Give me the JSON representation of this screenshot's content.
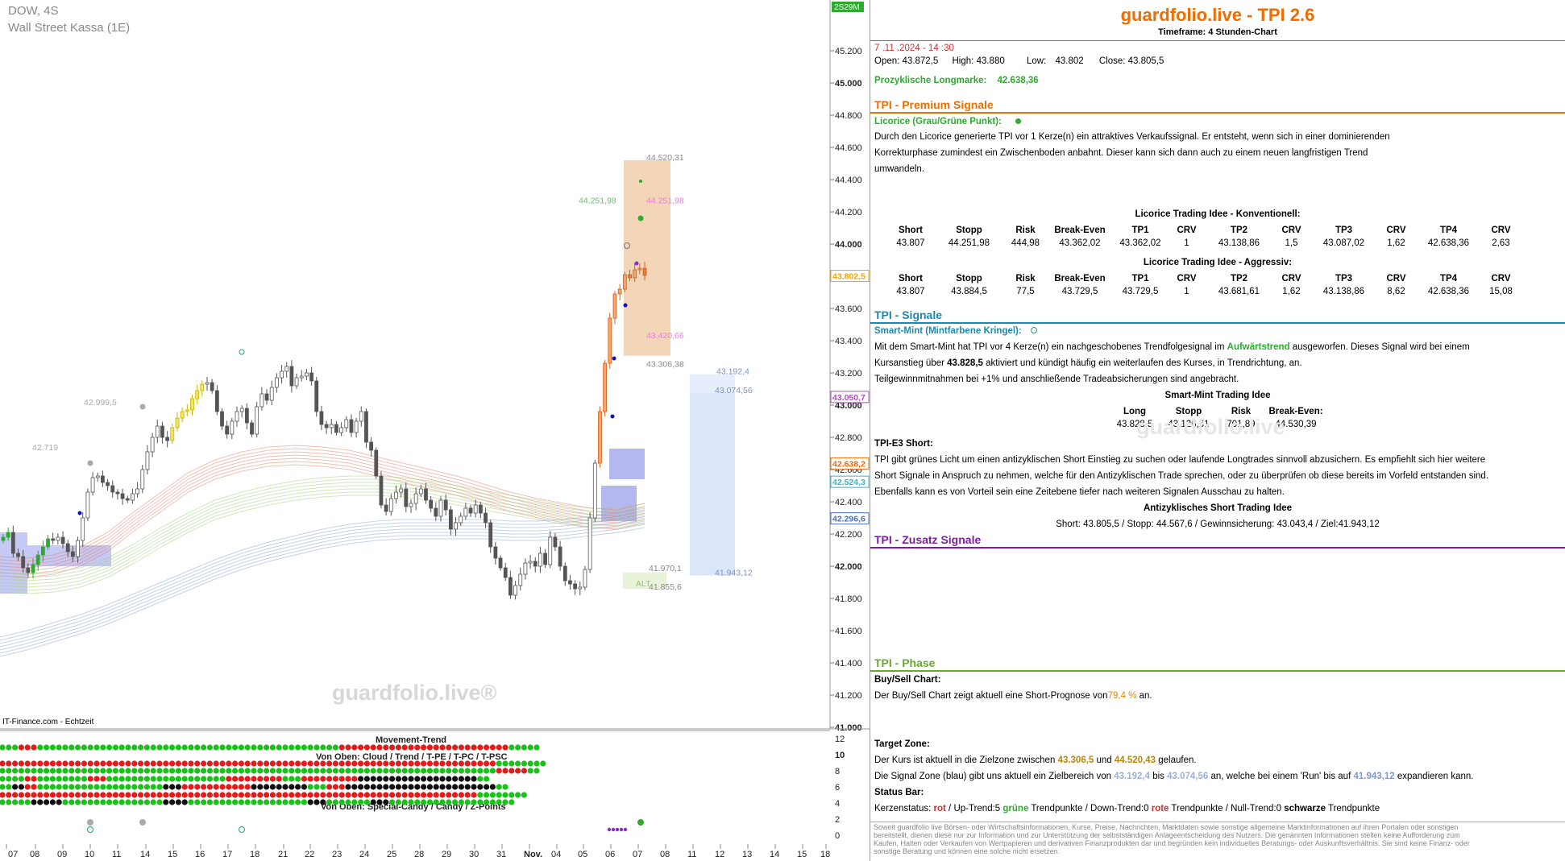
{
  "chart_header": {
    "symbol": "DOW, 4S",
    "subtitle": "Wall Street Kassa (1E)",
    "source": "IT-Finance.com - Echtzeit",
    "watermark": "guardfolio.live®",
    "corner_badge": "2S29M"
  },
  "chart_data": [
    {
      "type": "candlestick",
      "title": "DOW, 4S",
      "subtitle": "Wall Street Kassa (1E)",
      "ylim": [
        41000,
        45300
      ],
      "y_ticks": [
        "45.200",
        "45.000",
        "44.800",
        "44.600",
        "44.400",
        "44.200",
        "44.000",
        "43.800",
        "43.600",
        "43.400",
        "43.200",
        "43.000",
        "42.800",
        "42.600",
        "42.400",
        "42.200",
        "42.000",
        "41.800",
        "41.600",
        "41.400",
        "41.200",
        "41.000"
      ],
      "x_ticks": [
        "07",
        "08",
        "09",
        "10",
        "11",
        "14",
        "15",
        "16",
        "17",
        "18",
        "21",
        "22",
        "23",
        "24",
        "25",
        "28",
        "29",
        "30",
        "31",
        "Nov.",
        "04",
        "05",
        "06",
        "07",
        "08",
        "11",
        "12",
        "13",
        "14",
        "15",
        "18"
      ],
      "price_flags": [
        {
          "label": "43.802,5",
          "value": 43802.5,
          "color": "#f6a400"
        },
        {
          "label": "43.050,7",
          "value": 43050.7,
          "color": "#b04cc7"
        },
        {
          "label": "42.638,2",
          "value": 42638.2,
          "color": "#ef6c00"
        },
        {
          "label": "42.524,3",
          "value": 42524.3,
          "color": "#39b5c9"
        },
        {
          "label": "42.296,6",
          "value": 42296.6,
          "color": "#4a6fc0"
        }
      ],
      "annotations": [
        {
          "text": "44.520,31",
          "value": 44520.31
        },
        {
          "text": "44.251,98",
          "value": 44251.98
        },
        {
          "text": "44.251,98",
          "value": 44251.98
        },
        {
          "text": "43.420,66",
          "value": 43420.66
        },
        {
          "text": "43.306,38",
          "value": 43306.38
        },
        {
          "text": "43.192,4",
          "value": 43192.4
        },
        {
          "text": "43.074,56",
          "value": 43074.56
        },
        {
          "text": "42.999,5",
          "value": 42999.5
        },
        {
          "text": "42.719",
          "value": 42719
        },
        {
          "text": "41.970,1",
          "value": 41970.1
        },
        {
          "text": "41.855,6",
          "value": 41855.6
        },
        {
          "text": "41.943,12",
          "value": 41943.12
        },
        {
          "text": "ALT",
          "value": 41900
        }
      ],
      "candles_close": [
        42180,
        42210,
        42080,
        42060,
        41990,
        41960,
        42010,
        42070,
        42120,
        42170,
        42160,
        42180,
        42140,
        42090,
        42060,
        42160,
        42300,
        42460,
        42550,
        42560,
        42520,
        42500,
        42460,
        42450,
        42420,
        42410,
        42450,
        42480,
        42600,
        42710,
        42800,
        42870,
        42800,
        42780,
        42860,
        42920,
        42960,
        42970,
        43040,
        43090,
        43130,
        43140,
        43090,
        42960,
        42870,
        42820,
        42900,
        42960,
        42980,
        42890,
        42820,
        42990,
        43070,
        43030,
        43110,
        43170,
        43210,
        43240,
        43120,
        43170,
        43180,
        43200,
        43150,
        42960,
        42880,
        42860,
        42880,
        42830,
        42860,
        42910,
        42830,
        42900,
        42960,
        42770,
        42720,
        42560,
        42380,
        42340,
        42420,
        42460,
        42480,
        42370,
        42390,
        42450,
        42480,
        42410,
        42360,
        42310,
        42410,
        42350,
        42230,
        42270,
        42310,
        42360,
        42330,
        42380,
        42330,
        42270,
        42120,
        42050,
        41990,
        41930,
        41820,
        41880,
        41950,
        42020,
        42030,
        42000,
        42080,
        42010,
        42180,
        42120,
        42000,
        41910,
        41890,
        41860,
        41870,
        41980,
        42300,
        42640,
        42960,
        43260,
        43540,
        43690,
        43720,
        43810,
        43790,
        43840,
        43850,
        43805
      ],
      "ribbon": [
        {
          "name": "",
          "color": "#e8806a",
          "values": [
            42000,
            41990,
            42010,
            42060,
            42150,
            42280,
            42400,
            42520,
            42600,
            42650,
            42680,
            42690,
            42680,
            42660,
            42620,
            42580,
            42540,
            42500,
            42450,
            42400,
            42360,
            42330,
            42300,
            42290,
            42330
          ]
        },
        {
          "name": "",
          "color": "#9ed07a",
          "values": [
            41900,
            41890,
            41900,
            41930,
            41990,
            42080,
            42180,
            42270,
            42350,
            42400,
            42440,
            42470,
            42490,
            42500,
            42500,
            42490,
            42470,
            42440,
            42410,
            42380,
            42350,
            42320,
            42300,
            42300,
            42330
          ]
        },
        {
          "name": "",
          "color": "#8aa6d6",
          "values": [
            41500,
            41540,
            41590,
            41640,
            41700,
            41770,
            41840,
            41910,
            41980,
            42040,
            42090,
            42130,
            42170,
            42200,
            42220,
            42230,
            42230,
            42230,
            42230,
            42220,
            42220,
            42230,
            42250,
            42270,
            42300
          ]
        }
      ]
    },
    {
      "type": "heatmap",
      "title": "Movement-Trend",
      "row_labels": [
        "Von Oben: Cloud / Trend / T-PE / T-PC / T-PSC",
        "Von Oben: Special-Candy / Candy / Z-Points"
      ],
      "y_ticks": [
        "12",
        "10",
        "8",
        "6",
        "4",
        "2",
        "0"
      ],
      "rows": [
        "GGGGGGGGGRRRRRRRRRGGGGGGGGGGGGGGGGGGGGGGGGGGGGGGGGGGGGGGGGGGGGGGGGGGGGGGGGGGGGGGGGGGGGGGGGGGGGGGGGGGGGGGGGGGGGGGGGGGGGGGGGGGGGGGGGGGGGGGGGGGGGGGGGGGGGGGGGGGGGGGGRRRRRRRRRRRRRRRRRRRRRRRRRRRRRRRRRRRRRRRRRRRRRRRRRRRRRRRRRRRRRRRRRRRRRRRRRRRRRRRRRRGGGGGGGGGGGGGGG",
        "RRRRRRRRRRRRRRRRRRRRRRRRRRRRRRRRRRRRRRRRRRRRRRRRRRRRRRRRRRRRRRRRRRRRRRRRRRRRRRRRRRRRRRRRRRRRRRRRRRRRRRRRRRRRRRRRRRRRRRRRRRRRRRRRRRRRRRRRRRRRRRRRRRRRRRRRRRRRRRRRRRRRRRRRRRRRRRRRRRRRRRRRRRRRRRRRRRRRRRRRRRRRRRRRRRRRRRRRRRRRRRRRRRRRRRRRRRRRGGGGGGGGGGGGGGGGGGGGGGGGG",
        "GGGGGGGGGGGGGGGGGGGGGGGGGGGGGGGGGGGGGGGGGGGGGGGGGGGGGGGGGGGGGGGGGGGGGGGGGGGGGGGGGGGGGGGGGGGGGGGGGGGGGGGGGGGGGGGGGGGGGGGGGGGGGGGGGGGGGGGGGGGGGGGGGGGGGGGGGGGGGGGGGGGGGGGGGGGGGGGGGGGGGGGGGGGGGGGGGGGGGGGGGGGGGGGGGGGGGGGGGGGGGGGGGGGGGGGGGGGGRRRRRRRRRRRRRRGGGGGGGG",
        "GGGGGGGGGGGGRRRRRGGGGGGGGGGGGGGGGGGGGGGGGRRRRRRRRGGGGGGGGGGGGGGGGGGGGGGGGGGGGGGGGGGGGGGGGGGGGGGGGGGGGGGGGGGGRRRRRRRRRRRRRRRRRRRRRRRRRRGGGGGGGGGGRRRRRRRRRRRRRRRRRRRRRRRRRRRBBBBBBBBBBBBBBBBBBBBBBBBBBBBBBBBBBBBBBBBBBBBBBBBBBBBBBBGGGGGGGG",
        "GGGGGBBBBBBBRRRRRRGGGGGGGGGGGGGGGGGGGGGGGGGGGGGGGGGGGGGGGGGGGGGGGGGGGGGGGGGGGBBBBBBBBBRRRRRRRRRRRRRRRRRRRRRRRRRRRRRRRRRRBBBBBBBBBBBBBBBBBBBBBBBBBBGGGGGGGGGGRRRRRRRRBBBBBBBBBBBBBBBBBBBBBBBBBBBBBBBBBBBBBBBBBBBBBBBBBBBBBBBBBBBBBBBBBBBBBBBGGGGGGGG",
        "RRRRRRRRRRRRRRRRRRRRRRRRRRRRRRRRRRRRRRRRRRRRRRRRRRRRRRRRRRRRRRRRRRRRRRRRRRRRRRRRRRRRRRRRRRRRRRRRRRRRRRRRRRRRRRRRRRRRRRRRRRRRRRRRRRRRRRRRRRRRRRRRRRRRRRRRRRRRRRRRRRRRRRRRRRRRRRRRRRRRRRRRRRRRRRRRRRRRRRRRRRRRRRRRRRRRRRRRRRRRRRRRRRRGGGGGGGGGGGGGGGGGGGGGGGG",
        "GGGGGGGGGGGGGBBBBBBBBBBBBBBBGGGGGGGGGGGGGGGGGGGGGGGGGGGGGGGGGGGGGGGGGGGGGGGGGGBBBBBBBBBBBGGGGGGGGGGGGGGGGGGGGGGGGGGGGGGGGGGGGGGGGGGGGGGGGGGGGGGGGBBBBBBBBBGGGGGGGGGGGGGGGGGGGGGBBBBBBBBBBGGGGGGGGGGGGGGGGGGGGGGGGGGGGGGGGGGGGGGGGGGGGGGGGGGGGGGGGGGGGG"
      ]
    }
  ],
  "info": {
    "title": "guardfolio.live - TPI 2.6",
    "timeframe": "Timeframe: 4 Stunden-Chart",
    "date": "7 .11 .2024  - 14 :30",
    "ohlc": {
      "open_label": "Open:",
      "open": "43.872,5",
      "high_label": "High:",
      "high": "43.880",
      "low_label": "Low:",
      "low": "43.802",
      "close_label": "Close:",
      "close": "43.805,5"
    },
    "longmark_label": "Prozyklische Longmarke:",
    "longmark_value": "42.638,36",
    "premium": {
      "heading": "TPI - Premium Signale",
      "licorice_label": "Licorice (Grau/Grüne Punkt):",
      "text1": "Durch den Licorice generierte TPI vor 1  Kerze(n) ein attraktives Verkaufssignal. Er entsteht, wenn sich in einer dominierenden",
      "text2": "Korrekturphase zumindest ein Zwischenboden anbahnt. Dieser kann sich dann auch zu einem neuen langfristigen Trend",
      "text3": "umwandeln.",
      "table1_title": "Licorice Trading Idee - Konventionell:",
      "table2_title": "Licorice Trading Idee - Aggressiv:",
      "headers": [
        "Short",
        "Stopp",
        "Risk",
        "Break-Even",
        "TP1",
        "CRV",
        "TP2",
        "CRV",
        "TP3",
        "CRV",
        "TP4",
        "CRV"
      ],
      "row1": [
        "43.807",
        "44.251,98",
        "444,98",
        "43.362,02",
        "43.362,02",
        "1",
        "43.138,86",
        "1,5",
        "43.087,02",
        "1,62",
        "42.638,36",
        "2,63"
      ],
      "row2": [
        "43.807",
        "43.884,5",
        "77,5",
        "43.729,5",
        "43.729,5",
        "1",
        "43.681,61",
        "1,62",
        "43.138,86",
        "8,62",
        "42.638,36",
        "15,08"
      ]
    },
    "signals": {
      "heading": "TPI - Signale",
      "smartmint_label": "Smart-Mint (Mintfarbene Kringel):",
      "sm_text1a": "Mit dem Smart-Mint hat TPI vor 4  Kerze(n) ein nachgeschobenes Trendfolgesignal im ",
      "sm_trend": "Aufwärtstrend",
      "sm_text1b": " ausgeworfen. Dieses Signal wird bei einem",
      "sm_text2a": "Kursanstieg über ",
      "sm_level": "43.828,5",
      "sm_text2b": "  aktiviert und kündigt häufig ein weiterlaufen des Kurses, in Trendrichtung, an.",
      "sm_text3": "Teilgewinnmitnahmen bei +1% und anschließende Tradeabsicherungen sind angebracht.",
      "sm_table_title": "Smart-Mint Trading Idee",
      "sm_headers": [
        "Long",
        "Stopp",
        "Risk",
        "Break-Even:"
      ],
      "sm_row": [
        "43.828,5",
        "43.126,61",
        "701,89",
        "44.530,39"
      ],
      "e3_label": "TPI-E3 Short:",
      "e3_text1": "TPI gibt grünes Licht um einen antizyklischen Short Einstieg zu suchen oder laufende Longtrades sinnvoll abzusichern. Es empfiehlt sich hier weitere",
      "e3_text2": "Short Signale in Anspruch zu nehmen, welche für den Antizyklischen Trade sprechen, oder zu überprüfen ob diese bereits im Vorfeld entstanden sind.",
      "e3_text3": "Ebenfalls kann es von Vorteil sein eine Zeitebene tiefer nach weiteren Signalen Ausschau zu halten.",
      "e3_title": "Antizyklisches Short Trading Idee",
      "e3_line": "Short:  43.805,5  / Stopp:  44.567,6  / Gewinnsicherung:   43.043,4  / Ziel:41.943,12",
      "watermark": "guardfolio.live"
    },
    "zusatz": {
      "heading": "TPI - Zusatz Signale"
    },
    "phase": {
      "heading": "TPI - Phase",
      "bs_label": "Buy/Sell Chart:",
      "bs_text_a": "Der Buy/Sell Chart zeigt aktuell eine Short-Prognose von",
      "bs_pct": "79,4 %",
      "bs_text_b": " an.",
      "tz_label": "Target Zone:",
      "tz_a": "Der Kurs ist aktuell in die Zielzone zwischen ",
      "tz_v1": "43.306,5",
      "tz_b": " und ",
      "tz_v2": "44.520,43",
      "tz_c": " gelaufen.",
      "sz_a": "Die Signal Zone (blau) gibt uns aktuell ein Zielbereich von ",
      "sz_v1": "43.192,4",
      "sz_b": "  bis ",
      "sz_v2": "43.074,56",
      "sz_c": " an, welche bei einem 'Run' bis auf ",
      "sz_v3": "41.943,12",
      "sz_d": "  expandieren kann.",
      "sb_label": "Status Bar:",
      "sb_a": "Kerzenstatus:  ",
      "sb_rot": "rot",
      "sb_b": "     / Up-Trend:5 ",
      "sb_gr": "grüne",
      "sb_c": " Trendpunkte  / Down-Trend:0 ",
      "sb_rt": "rote",
      "sb_d": " Trendpunkte / Null-Trend:0 ",
      "sb_sw": "schwarze",
      "sb_e": " Trendpunkte"
    },
    "disclaimer": "Soweit guardfolio live Börsen- oder Wirtschaftsinformationen, Kurse, Preise, Nachrichten, Marktdaten sowie sonstige allgemeine Marktinformationen auf ihren Portalen oder sonstigen bereitstellt, dienen diese nur zur Information und zur Unterstützung der selbstständigen Anlageentscheidung des Nutzers. Die genannten Informationen stellen keine Aufforderung zum Kaufen, Halten oder Verkaufen von Wertpapieren und derivativen Finanzprodukten dar und begründen kein individuelles Beratungs- oder Auskunftsverhältnis. Sie sind keine Finanz- oder sonstige Beratung und können eine solche nicht ersetzen."
  }
}
